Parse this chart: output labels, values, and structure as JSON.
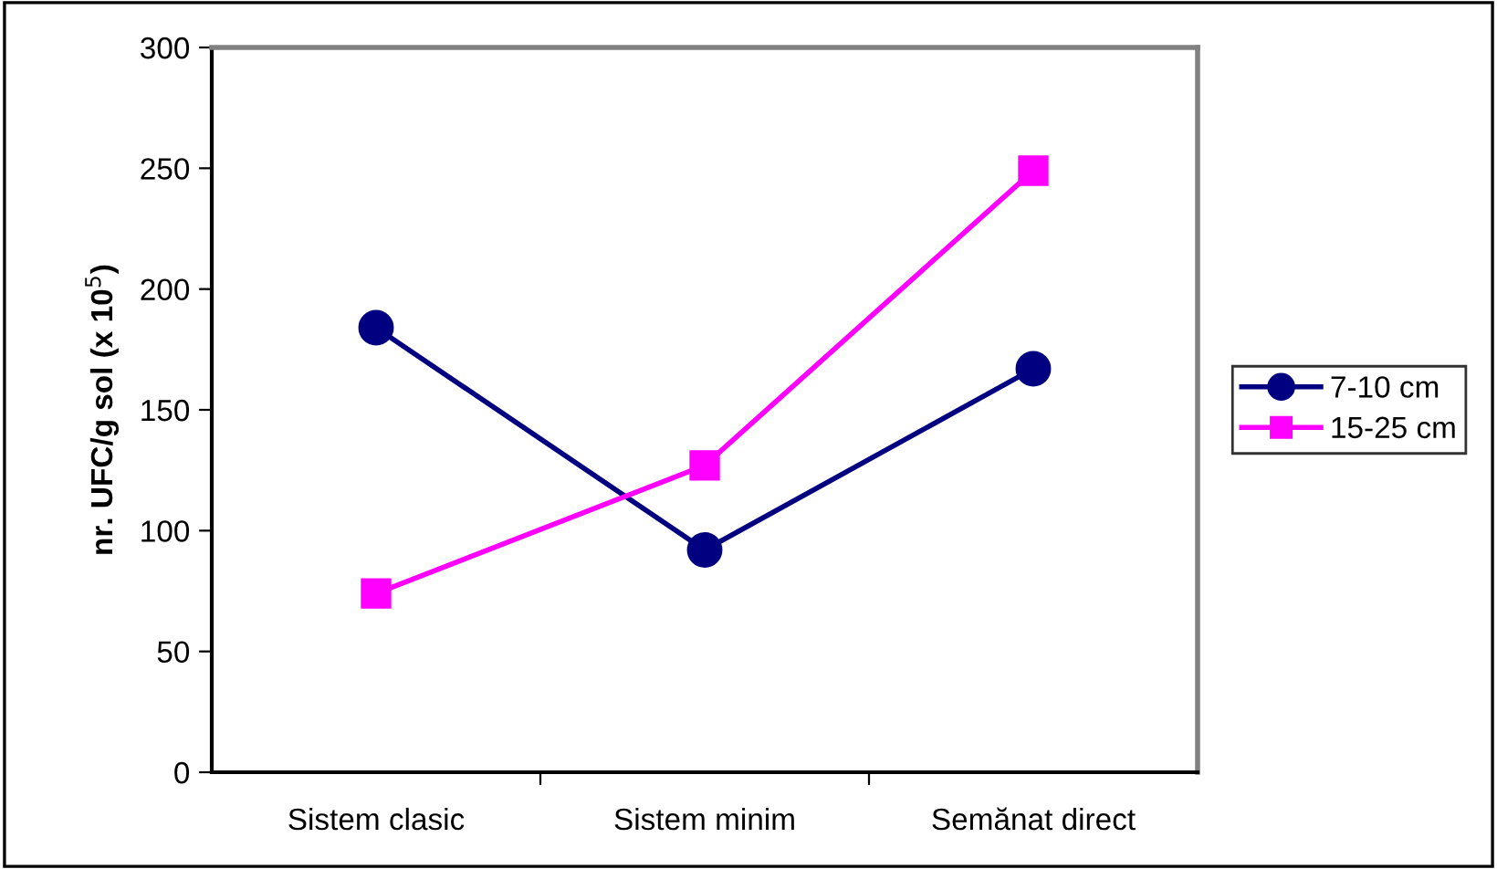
{
  "chart_data": {
    "type": "line",
    "ylabel": "nr. UFC/g sol (x 10$^{5}$)",
    "categories": [
      "Sistem clasic",
      "Sistem minim",
      "Semănat direct"
    ],
    "series": [
      {
        "name": "7-10 cm",
        "color": "#000080",
        "marker": "circle",
        "values": [
          184,
          92,
          167
        ]
      },
      {
        "name": "15-25 cm",
        "color": "#ff00ff",
        "marker": "square",
        "values": [
          74,
          127,
          249
        ]
      }
    ],
    "ylim": [
      0,
      300
    ],
    "yticks": [
      0,
      50,
      100,
      150,
      200,
      250,
      300
    ],
    "grid": false,
    "legend": "right",
    "line_style": "solid"
  }
}
